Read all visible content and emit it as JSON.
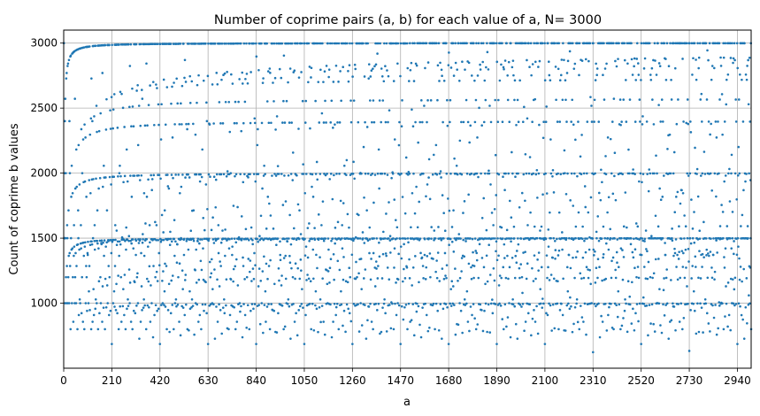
{
  "chart_data": {
    "type": "scatter",
    "title": "Number of coprime pairs (a, b) for each value of a, N= 3000",
    "xlabel": "a",
    "ylabel": "Count of coprime b values",
    "xlim": [
      0,
      3000
    ],
    "ylim": [
      500,
      3100
    ],
    "xticks": [
      "0",
      "210",
      "420",
      "630",
      "840",
      "1050",
      "1260",
      "1470",
      "1680",
      "1890",
      "2100",
      "2310",
      "2520",
      "2730",
      "2940"
    ],
    "yticks": [
      "1000",
      "1500",
      "2000",
      "2500",
      "3000"
    ],
    "grid": true,
    "marker_color": "#1f77b4",
    "N": 3000,
    "series": [
      {
        "values_rule": "y(a) = number of b in 1..3000 with gcd(a, b) = 1, for a = 1..3000"
      }
    ]
  }
}
